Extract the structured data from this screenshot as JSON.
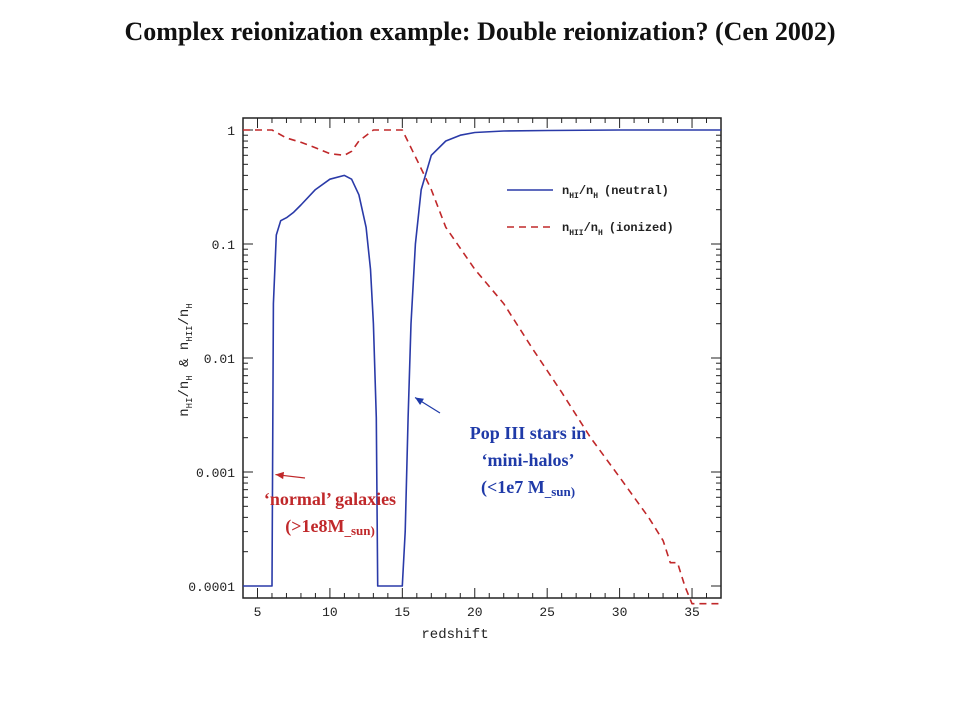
{
  "title": "Complex reionization example: Double reionization? (Cen 2002)",
  "chart_data": {
    "type": "line",
    "xlabel": "redshift",
    "ylabel": "n_HI/n_H & n_HII/n_H",
    "xlim": [
      4,
      37
    ],
    "ylim": [
      0.0001,
      1
    ],
    "yscale": "log",
    "xticks": [
      5,
      10,
      15,
      20,
      25,
      30,
      35
    ],
    "xtick_labels": [
      "5",
      "10",
      "15",
      "20",
      "25",
      "30",
      "35"
    ],
    "yticks": [
      1,
      0.1,
      0.01,
      0.001,
      0.0001
    ],
    "ytick_labels": [
      "1",
      "0.1",
      "0.01",
      "0.001",
      "0.0001"
    ],
    "legend_position": "top-right",
    "series": [
      {
        "name": "n_HI/n_H (neutral)",
        "color": "#2a3aa8",
        "style": "solid",
        "x": [
          4.0,
          6.0,
          6.1,
          6.3,
          6.6,
          7.0,
          7.5,
          8.0,
          9.0,
          10.0,
          11.0,
          11.5,
          12.0,
          12.5,
          12.8,
          13.0,
          13.2,
          13.3,
          13.5,
          15.0,
          15.2,
          15.4,
          15.6,
          15.9,
          16.3,
          17.0,
          18.0,
          19.0,
          20.0,
          22.0,
          25.0,
          30.0,
          37.0
        ],
        "y": [
          0.0001,
          0.0001,
          0.03,
          0.12,
          0.16,
          0.17,
          0.19,
          0.22,
          0.3,
          0.37,
          0.4,
          0.37,
          0.27,
          0.14,
          0.06,
          0.02,
          0.003,
          0.0001,
          0.0001,
          0.0001,
          0.0003,
          0.003,
          0.02,
          0.1,
          0.3,
          0.6,
          0.8,
          0.9,
          0.95,
          0.98,
          0.99,
          1.0,
          1.0
        ]
      },
      {
        "name": "n_HII/n_H (ionized)",
        "color": "#c0282a",
        "style": "dashed",
        "x": [
          4.0,
          6.0,
          7.0,
          8.0,
          9.0,
          10.0,
          11.0,
          11.5,
          12.0,
          13.0,
          14.0,
          15.0,
          16.0,
          17.0,
          18.0,
          20.0,
          22.0,
          24.0,
          26.0,
          28.0,
          30.0,
          31.0,
          32.0,
          33.0,
          33.5,
          34.0,
          34.5,
          35.0,
          37.0
        ],
        "y": [
          1.0,
          1.0,
          0.85,
          0.78,
          0.7,
          0.62,
          0.6,
          0.65,
          0.8,
          1.0,
          1.0,
          1.0,
          0.55,
          0.3,
          0.14,
          0.06,
          0.03,
          0.012,
          0.005,
          0.002,
          0.0009,
          0.0006,
          0.0004,
          0.00025,
          0.00016,
          0.00016,
          0.0001,
          7e-05,
          7e-05
        ]
      }
    ]
  },
  "legend": {
    "neutral": {
      "n": "n",
      "sub1": "HI",
      "slash": "/n",
      "sub2": "H",
      "tail": "(neutral)"
    },
    "ionized": {
      "n": "n",
      "sub1": "HII",
      "slash": "/n",
      "sub2": "H",
      "tail": "(ionized)"
    }
  },
  "ylabel_parts": {
    "n1": "n",
    "s1": "HI",
    "m1": "/n",
    "s2": "H",
    "amp": " & ",
    "n2": "n",
    "s3": "HII",
    "m2": "/n",
    "s4": "H"
  },
  "annotations": {
    "pop3": {
      "line1": "Pop III stars in",
      "line2": "‘mini-halos’",
      "line3_main": "(<1e7 M",
      "line3_sub": "_sun)",
      "color": "#1f3aa8"
    },
    "normal": {
      "line1": "‘normal’ galaxies",
      "line2_main": "(>1e8M",
      "line2_sub": "_sun)",
      "color": "#c0282a"
    }
  }
}
